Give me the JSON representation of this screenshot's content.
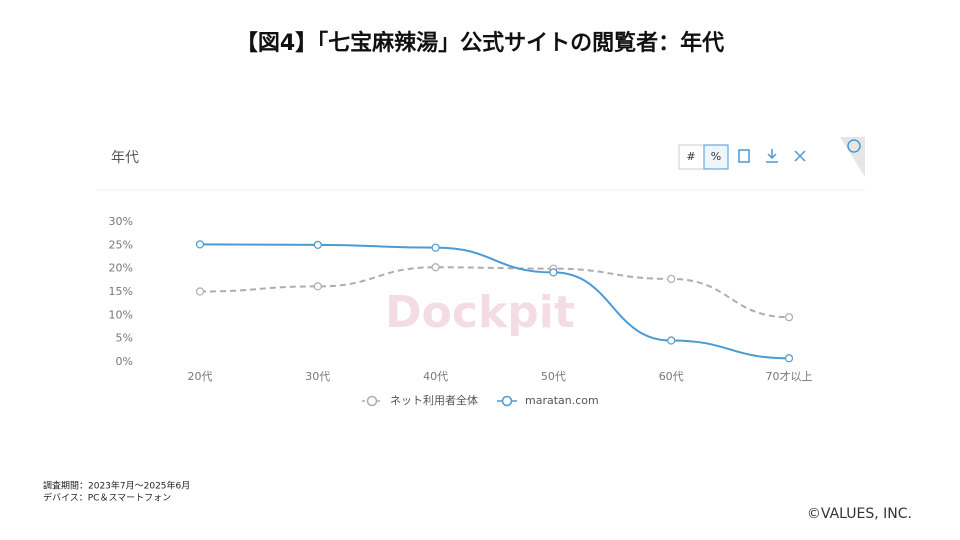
{
  "header": {
    "title": "【図4】「七宝麻辣湯」公式サイトの閲覧者：年代"
  },
  "chart_data": {
    "type": "line",
    "title": "年代",
    "toggle": [
      "#",
      "%"
    ],
    "watermark": "Dockpit",
    "categories": [
      "20代",
      "30代",
      "40代",
      "50代",
      "60代",
      "70才以上"
    ],
    "series": [
      {
        "name": "ネット利用者全体",
        "color": "#b3a9b0",
        "dashed": true,
        "values": [
          15.1,
          16.2,
          20.3,
          20.0,
          17.8,
          9.6
        ]
      },
      {
        "name": "maratan.com",
        "color": "#4a9ad4",
        "dashed": false,
        "values": [
          25.2,
          25.1,
          24.5,
          19.2,
          4.6,
          0.8
        ]
      }
    ],
    "ylim": [
      0,
      30
    ],
    "yticks": [
      {
        "value": 0,
        "label": "0%"
      },
      {
        "value": 5,
        "label": "5%"
      },
      {
        "value": 10,
        "label": "10%"
      },
      {
        "value": 15,
        "label": "15%"
      },
      {
        "value": 20,
        "label": "20%"
      },
      {
        "value": 25,
        "label": "25%"
      },
      {
        "value": 30,
        "label": "30%"
      }
    ],
    "grid": false,
    "legend": "bottom"
  },
  "footer": {
    "notes": [
      "調査期間：2023年7月～2025年6月",
      "デバイス：PC＆スマートフォン"
    ],
    "copyright": "©VALUES, INC."
  }
}
